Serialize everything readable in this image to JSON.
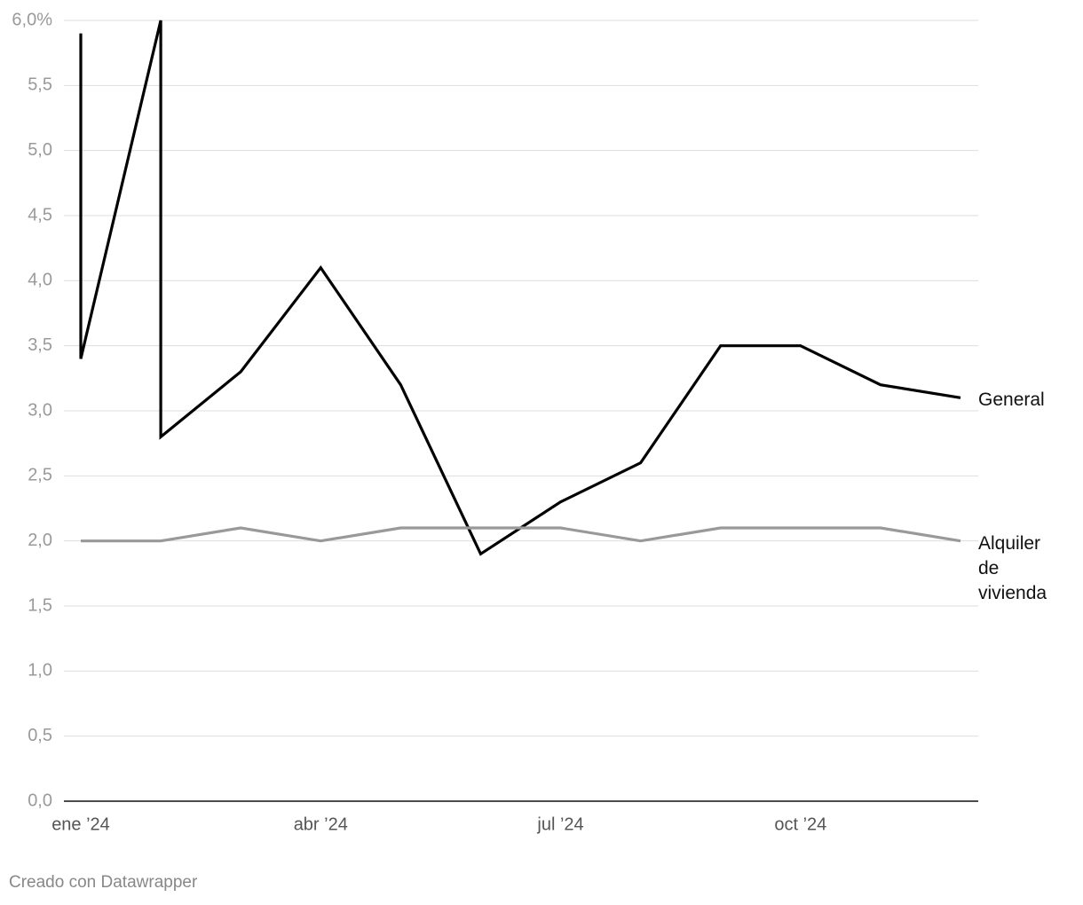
{
  "chart_data": {
    "type": "line",
    "xlim": [
      "2024-01",
      "2024-12"
    ],
    "xticks": [
      {
        "value": "2024-01",
        "label": "ene ’24"
      },
      {
        "value": "2024-04",
        "label": "abr ’24"
      },
      {
        "value": "2024-07",
        "label": "jul ’24"
      },
      {
        "value": "2024-10",
        "label": "oct ’24"
      }
    ],
    "ylim": [
      0,
      6
    ],
    "yticks": [
      {
        "value": 0,
        "label": "0,0"
      },
      {
        "value": 0.5,
        "label": "0,5"
      },
      {
        "value": 1,
        "label": "1,0"
      },
      {
        "value": 1.5,
        "label": "1,5"
      },
      {
        "value": 2,
        "label": "2,0"
      },
      {
        "value": 2.5,
        "label": "2,5"
      },
      {
        "value": 3,
        "label": "3,0"
      },
      {
        "value": 3.5,
        "label": "3,5"
      },
      {
        "value": 4,
        "label": "4,0"
      },
      {
        "value": 4.5,
        "label": "4,5"
      },
      {
        "value": 5,
        "label": "5,0"
      },
      {
        "value": 5.5,
        "label": "5,5"
      },
      {
        "value": 6,
        "label": "6,0%"
      }
    ],
    "grid": true,
    "series": [
      {
        "name": "General",
        "color": "#000000",
        "x": [
          "2024-01",
          "2024-01",
          "2024-02",
          "2024-02",
          "2024-03",
          "2024-04",
          "2024-05",
          "2024-06",
          "2024-07",
          "2024-08",
          "2024-09",
          "2024-10",
          "2024-11",
          "2024-12"
        ],
        "values": [
          5.9,
          3.4,
          6.0,
          2.8,
          3.3,
          4.1,
          3.2,
          1.9,
          2.3,
          2.6,
          3.5,
          3.5,
          3.2,
          3.1
        ]
      },
      {
        "name": "Alquiler de vivienda",
        "color": "#999999",
        "x": [
          "2024-01",
          "2024-02",
          "2024-03",
          "2024-04",
          "2024-05",
          "2024-06",
          "2024-07",
          "2024-08",
          "2024-09",
          "2024-10",
          "2024-11",
          "2024-12"
        ],
        "values": [
          2.0,
          2.0,
          2.1,
          2.0,
          2.1,
          2.1,
          2.1,
          2.0,
          2.1,
          2.1,
          2.1,
          2.0
        ]
      }
    ],
    "footer": "Creado con Datawrapper"
  }
}
